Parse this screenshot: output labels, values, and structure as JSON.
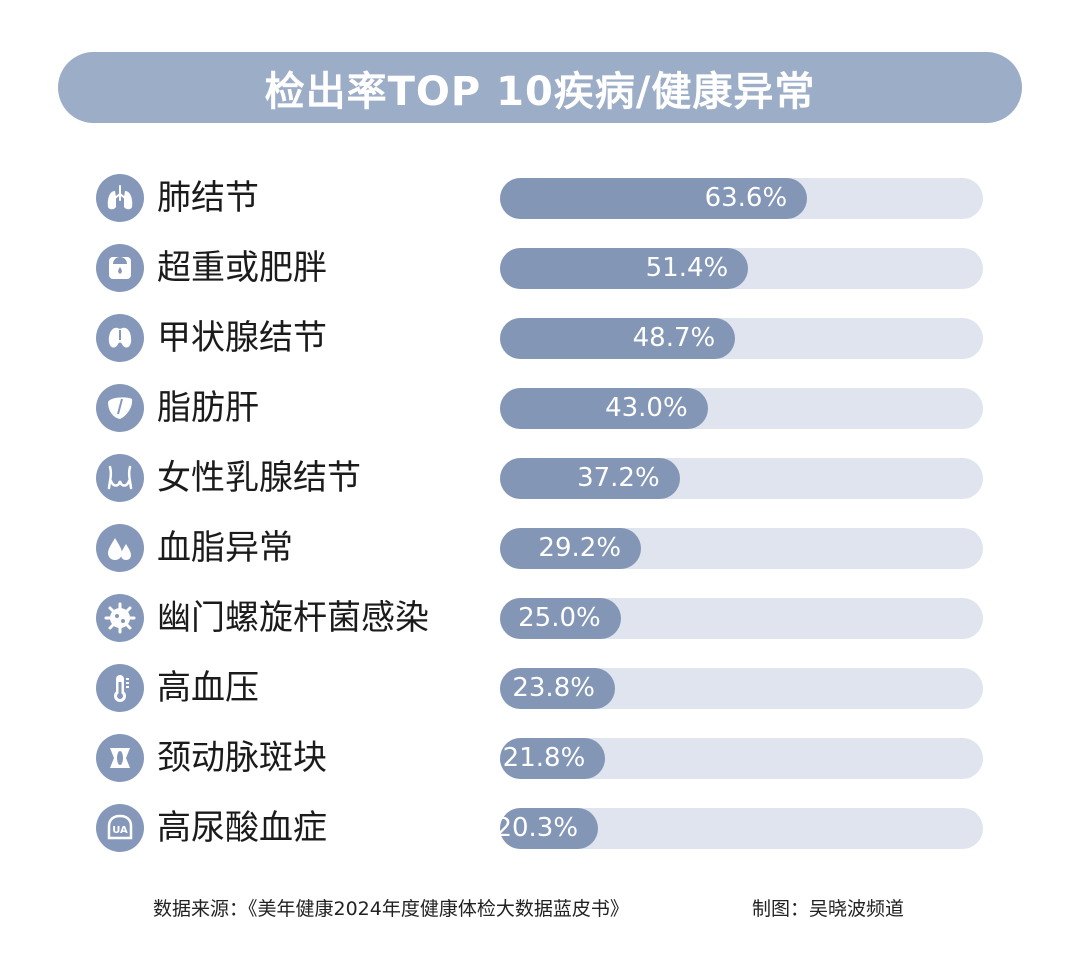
{
  "title": "检出率TOP 10疾病/健康异常",
  "colors": {
    "banner": "#9cadc8",
    "bar_fill": "#8396b6",
    "bar_track": "#dfe4ee",
    "icon_bg": "#8598b9"
  },
  "chart_data": {
    "type": "bar",
    "orientation": "horizontal",
    "title": "检出率TOP 10疾病/健康异常",
    "unit": "%",
    "xlim": [
      0,
      100
    ],
    "categories": [
      "肺结节",
      "超重或肥胖",
      "甲状腺结节",
      "脂肪肝",
      "女性乳腺结节",
      "血脂异常",
      "幽门螺旋杆菌感染",
      "高血压",
      "颈动脉斑块",
      "高尿酸血症"
    ],
    "values": [
      63.6,
      51.4,
      48.7,
      43.0,
      37.2,
      29.2,
      25.0,
      23.8,
      21.8,
      20.3
    ],
    "value_labels": [
      "63.6%",
      "51.4%",
      "48.7%",
      "43.0%",
      "37.2%",
      "29.2%",
      "25.0%",
      "23.8%",
      "21.8%",
      "20.3%"
    ],
    "icons": [
      "lungs-icon",
      "scale-icon",
      "thyroid-icon",
      "liver-icon",
      "breast-icon",
      "blood-drop-icon",
      "bacteria-icon",
      "thermometer-icon",
      "artery-icon",
      "uric-acid-icon"
    ]
  },
  "footer": {
    "source": "数据来源：《美年健康2024年度健康体检大数据蓝皮书》",
    "credit": "制图：吴晓波频道"
  }
}
